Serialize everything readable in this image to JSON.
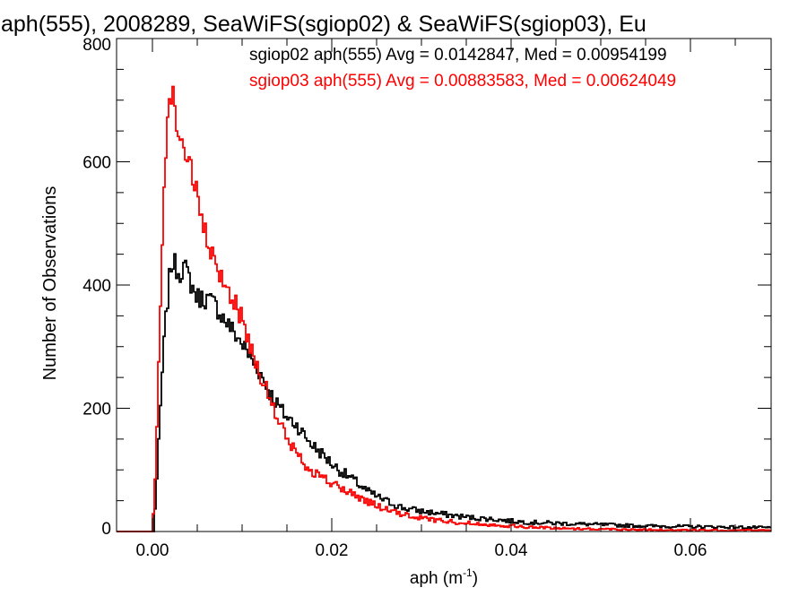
{
  "chart_data": {
    "type": "line",
    "title": "aph(555), 2008289, SeaWiFS(sgiop02) & SeaWiFS(sgiop03), Eu",
    "xlabel": "aph (m",
    "xlabel_exp": "-1",
    "xlabel_close": ")",
    "ylabel": "Number of Observations",
    "xlim": [
      -0.004,
      0.069
    ],
    "ylim": [
      0,
      800
    ],
    "x_ticks": [
      0.0,
      0.02,
      0.04,
      0.06
    ],
    "x_tick_labels": [
      "0.00",
      "0.02",
      "0.04",
      "0.06"
    ],
    "y_ticks": [
      0,
      200,
      400,
      600,
      800
    ],
    "y_tick_labels": [
      "0",
      "200",
      "400",
      "600",
      "800"
    ],
    "x_minor_step": 0.005,
    "y_minor_step": 50,
    "grid": false,
    "legend_position": "top-right",
    "bin_width": 0.0002,
    "series": [
      {
        "name": "sgiop02",
        "color": "#000000",
        "label": "sgiop02 aph(555) Avg = 0.0142847, Med = 0.00954199",
        "anchors": [
          [
            -0.004,
            0
          ],
          [
            0.0001,
            0
          ],
          [
            0.0002,
            18
          ],
          [
            0.0004,
            60
          ],
          [
            0.0006,
            110
          ],
          [
            0.0008,
            170
          ],
          [
            0.001,
            230
          ],
          [
            0.0012,
            285
          ],
          [
            0.0014,
            325
          ],
          [
            0.0016,
            362
          ],
          [
            0.0018,
            392
          ],
          [
            0.002,
            425
          ],
          [
            0.0022,
            440
          ],
          [
            0.0025,
            432
          ],
          [
            0.003,
            420
          ],
          [
            0.0035,
            430
          ],
          [
            0.004,
            415
          ],
          [
            0.0045,
            395
          ],
          [
            0.005,
            380
          ],
          [
            0.006,
            378
          ],
          [
            0.007,
            368
          ],
          [
            0.008,
            345
          ],
          [
            0.009,
            325
          ],
          [
            0.01,
            305
          ],
          [
            0.011,
            280
          ],
          [
            0.012,
            258
          ],
          [
            0.013,
            228
          ],
          [
            0.014,
            205
          ],
          [
            0.015,
            185
          ],
          [
            0.016,
            175
          ],
          [
            0.017,
            155
          ],
          [
            0.018,
            138
          ],
          [
            0.019,
            125
          ],
          [
            0.02,
            110
          ],
          [
            0.021,
            98
          ],
          [
            0.022,
            88
          ],
          [
            0.023,
            77
          ],
          [
            0.024,
            65
          ],
          [
            0.025,
            57
          ],
          [
            0.026,
            50
          ],
          [
            0.027,
            44
          ],
          [
            0.028,
            38
          ],
          [
            0.03,
            33
          ],
          [
            0.032,
            29
          ],
          [
            0.034,
            25
          ],
          [
            0.036,
            22
          ],
          [
            0.038,
            20
          ],
          [
            0.04,
            17
          ],
          [
            0.042,
            15
          ],
          [
            0.044,
            14
          ],
          [
            0.046,
            13
          ],
          [
            0.048,
            12
          ],
          [
            0.05,
            11
          ],
          [
            0.055,
            9
          ],
          [
            0.06,
            8
          ],
          [
            0.065,
            7
          ],
          [
            0.069,
            6
          ]
        ]
      },
      {
        "name": "sgiop03",
        "color": "#ff0000",
        "label": "sgiop03 aph(555) Avg = 0.00883583, Med = 0.00624049",
        "anchors": [
          [
            -0.004,
            0
          ],
          [
            0.0,
            0
          ],
          [
            0.0002,
            50
          ],
          [
            0.0004,
            120
          ],
          [
            0.0006,
            220
          ],
          [
            0.0008,
            330
          ],
          [
            0.001,
            430
          ],
          [
            0.0012,
            530
          ],
          [
            0.0014,
            600
          ],
          [
            0.0016,
            650
          ],
          [
            0.0018,
            685
          ],
          [
            0.002,
            705
          ],
          [
            0.0022,
            710
          ],
          [
            0.0025,
            690
          ],
          [
            0.003,
            640
          ],
          [
            0.0035,
            625
          ],
          [
            0.004,
            605
          ],
          [
            0.0045,
            575
          ],
          [
            0.005,
            540
          ],
          [
            0.0055,
            505
          ],
          [
            0.006,
            475
          ],
          [
            0.0065,
            452
          ],
          [
            0.007,
            430
          ],
          [
            0.008,
            405
          ],
          [
            0.009,
            378
          ],
          [
            0.01,
            345
          ],
          [
            0.011,
            298
          ],
          [
            0.012,
            258
          ],
          [
            0.013,
            218
          ],
          [
            0.014,
            180
          ],
          [
            0.015,
            152
          ],
          [
            0.016,
            128
          ],
          [
            0.017,
            110
          ],
          [
            0.018,
            97
          ],
          [
            0.019,
            87
          ],
          [
            0.02,
            78
          ],
          [
            0.021,
            70
          ],
          [
            0.022,
            63
          ],
          [
            0.023,
            56
          ],
          [
            0.024,
            49
          ],
          [
            0.025,
            42
          ],
          [
            0.026,
            36
          ],
          [
            0.027,
            31
          ],
          [
            0.028,
            27
          ],
          [
            0.03,
            22
          ],
          [
            0.032,
            18
          ],
          [
            0.034,
            15
          ],
          [
            0.036,
            13
          ],
          [
            0.038,
            11
          ],
          [
            0.04,
            9
          ],
          [
            0.042,
            7
          ],
          [
            0.044,
            6
          ],
          [
            0.046,
            5
          ],
          [
            0.05,
            4
          ],
          [
            0.055,
            3
          ],
          [
            0.06,
            2
          ],
          [
            0.069,
            2
          ]
        ]
      }
    ]
  }
}
